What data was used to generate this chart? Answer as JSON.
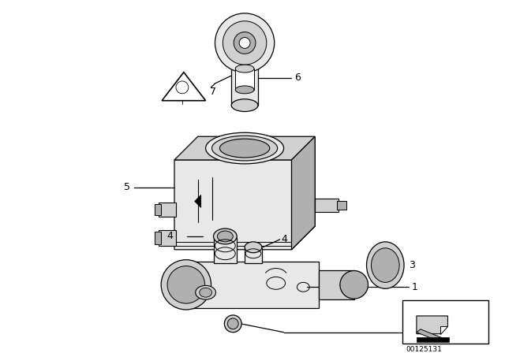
{
  "background_color": "#ffffff",
  "line_color": "#000000",
  "fig_width": 6.4,
  "fig_height": 4.48,
  "dpi": 100,
  "part_number": "00125131",
  "lw": 0.9,
  "fc_light": "#e8e8e8",
  "fc_mid": "#d0d0d0",
  "fc_dark": "#b0b0b0",
  "fc_white": "#ffffff"
}
